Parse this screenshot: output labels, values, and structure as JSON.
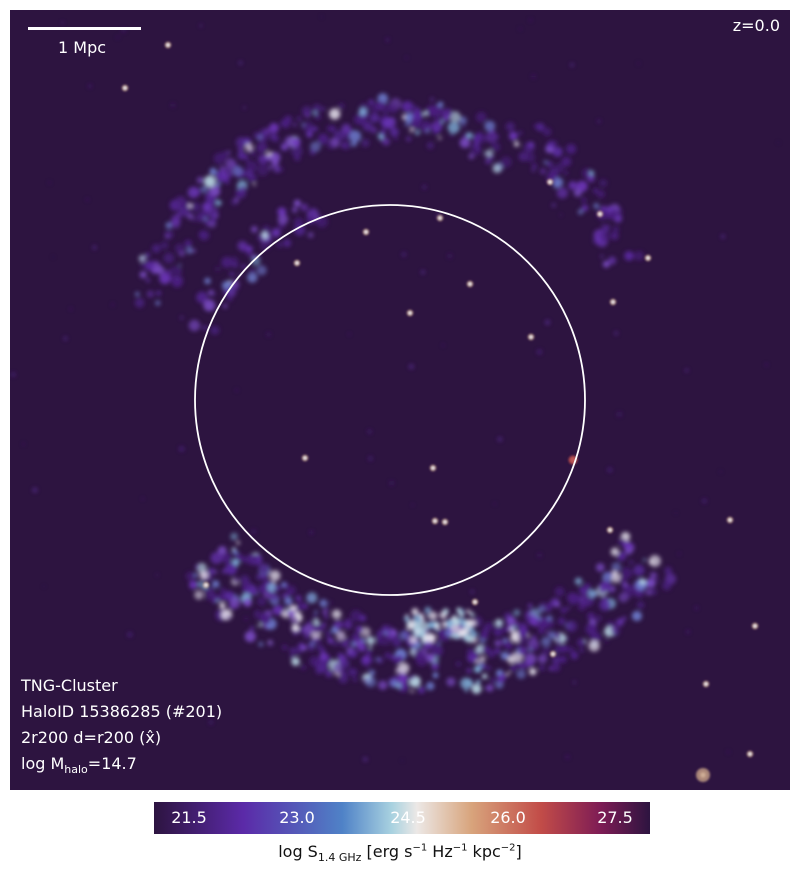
{
  "map": {
    "scale_label": "1 Mpc",
    "redshift_label": "z=0.0",
    "info_lines": {
      "sim": "TNG-Cluster",
      "halo_id": "HaloID 15386285 (#201)",
      "projection": "2r200 d=r200 (x̂)",
      "mass_prefix": "log M",
      "mass_sub": "halo",
      "mass_value": "=14.7"
    }
  },
  "colorbar": {
    "ticks": [
      "21.5",
      "23.0",
      "24.5",
      "26.0",
      "27.5"
    ],
    "label_prefix": "log S",
    "label_sub": "1.4 GHz",
    "label_unit": " [erg s",
    "exp1": "−1",
    "hz": " Hz",
    "exp2": "−1",
    "kpc": " kpc",
    "exp3": "−2",
    "close": "]"
  },
  "colors": {
    "background": "#2d1440",
    "circle": "#ffffff"
  }
}
